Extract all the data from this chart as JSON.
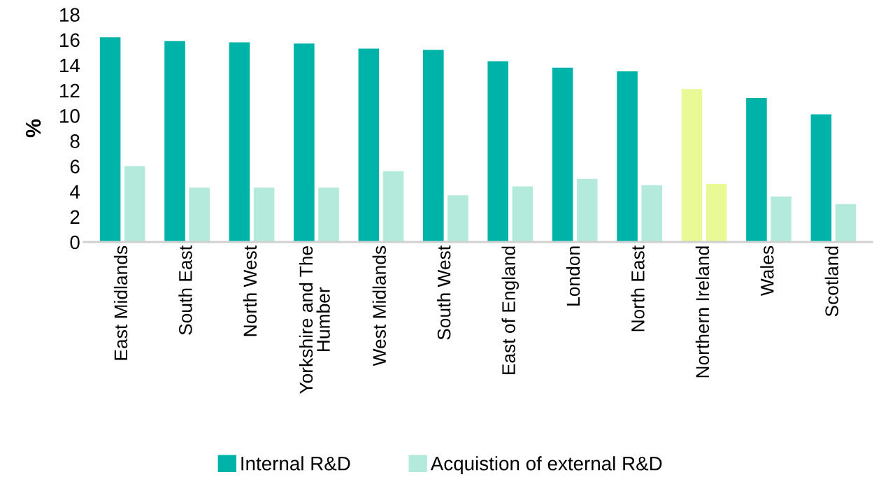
{
  "chart_data": {
    "type": "bar",
    "ylabel": "%",
    "categories": [
      "East Midlands",
      "South East",
      "North West",
      "Yorkshire and The Humber",
      "West Midlands",
      "South West",
      "East of England",
      "London",
      "North East",
      "Northern Ireland",
      "Wales",
      "Scotland"
    ],
    "series": [
      {
        "name": "Internal R&D",
        "color": "#00b3a9",
        "colors": [
          "#00b3a9",
          "#00b3a9",
          "#00b3a9",
          "#00b3a9",
          "#00b3a9",
          "#00b3a9",
          "#00b3a9",
          "#00b3a9",
          "#00b3a9",
          "#e8f995",
          "#00b3a9",
          "#00b3a9"
        ],
        "values": [
          16.2,
          15.9,
          15.8,
          15.7,
          15.3,
          15.2,
          14.3,
          13.8,
          13.5,
          12.1,
          11.4,
          10.1
        ]
      },
      {
        "name": "Acquistion of external R&D",
        "color": "#b3eadc",
        "colors": [
          "#b3eadc",
          "#b3eadc",
          "#b3eadc",
          "#b3eadc",
          "#b3eadc",
          "#b3eadc",
          "#b3eadc",
          "#b3eadc",
          "#b3eadc",
          "#e8f995",
          "#b3eadc",
          "#b3eadc"
        ],
        "values": [
          6.0,
          4.3,
          4.3,
          4.3,
          5.6,
          3.7,
          4.4,
          5.0,
          4.5,
          4.6,
          3.6,
          3.0
        ]
      }
    ],
    "ylim": [
      0,
      18
    ],
    "yticks": [
      0,
      2,
      4,
      6,
      8,
      10,
      12,
      14,
      16,
      18
    ],
    "grid": false,
    "legend": "bottom"
  }
}
